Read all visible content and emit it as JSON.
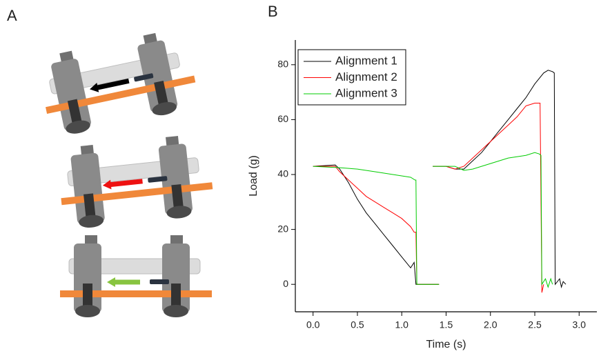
{
  "panel_labels": [
    "A",
    "B"
  ],
  "chart_data": {
    "type": "line",
    "xlabel": "Time (s)",
    "ylabel": "Load (g)",
    "xlim": [
      -0.2,
      3.2
    ],
    "ylim": [
      -10,
      89
    ],
    "xticks": [
      {
        "value": 0,
        "label": "0.0"
      },
      0.5,
      {
        "value": 1,
        "label": "1.0"
      },
      1.5,
      {
        "value": 2,
        "label": "2.0"
      },
      2.5,
      {
        "value": 3,
        "label": "3.0"
      }
    ],
    "yticks": [
      0,
      20,
      40,
      60,
      80
    ],
    "legend": "upper left",
    "series": [
      {
        "name": "Alignment 1",
        "color": "#000000",
        "x": [
          0,
          0.25,
          0.3,
          0.4,
          0.5,
          0.6,
          0.7,
          0.8,
          0.9,
          1.0,
          1.1,
          1.14,
          1.16,
          1.42,
          1.43,
          1.35,
          1.5,
          1.6,
          1.7,
          1.8,
          1.9,
          2.0,
          2.1,
          2.2,
          2.3,
          2.4,
          2.5,
          2.6,
          2.65,
          2.7,
          2.72,
          2.73,
          2.78,
          2.8,
          2.82,
          2.85
        ],
        "values": [
          43,
          43.5,
          42,
          37,
          31,
          26,
          22,
          18,
          14,
          10,
          6,
          8,
          0,
          0,
          null,
          43,
          43,
          42,
          42,
          45,
          48,
          52,
          56,
          60,
          64,
          68,
          73,
          77,
          78,
          77.5,
          77,
          0,
          2,
          -1,
          1,
          0
        ]
      },
      {
        "name": "Alignment 2",
        "color": "#ff0000",
        "x": [
          0,
          0.25,
          0.3,
          0.4,
          0.5,
          0.6,
          0.7,
          0.8,
          0.9,
          1.0,
          1.1,
          1.14,
          1.16,
          1.17,
          1.42,
          1.43,
          1.35,
          1.5,
          1.6,
          1.7,
          1.8,
          1.9,
          2.0,
          2.1,
          2.2,
          2.3,
          2.4,
          2.5,
          2.56,
          2.58,
          2.6
        ],
        "values": [
          43,
          43,
          41,
          38,
          35,
          32,
          30,
          28,
          26,
          24,
          21,
          19,
          19,
          0,
          0,
          null,
          43,
          43,
          42,
          43,
          46,
          49,
          52,
          55,
          58,
          61,
          65,
          66,
          66,
          -3,
          0
        ]
      },
      {
        "name": "Alignment 3",
        "color": "#00cc00",
        "x": [
          0,
          0.3,
          0.5,
          0.7,
          0.9,
          1.1,
          1.15,
          1.16,
          1.17,
          1.42,
          1.43,
          1.35,
          1.6,
          1.7,
          1.8,
          2.0,
          2.2,
          2.4,
          2.5,
          2.55,
          2.57,
          2.58,
          2.62,
          2.65,
          2.68,
          2.7
        ],
        "values": [
          43,
          42.5,
          42,
          41,
          40,
          39,
          38,
          38,
          0,
          0,
          null,
          43,
          43,
          41.5,
          42,
          44,
          46,
          47,
          48,
          47.5,
          47,
          0,
          2,
          -1,
          2,
          0
        ]
      }
    ]
  }
}
